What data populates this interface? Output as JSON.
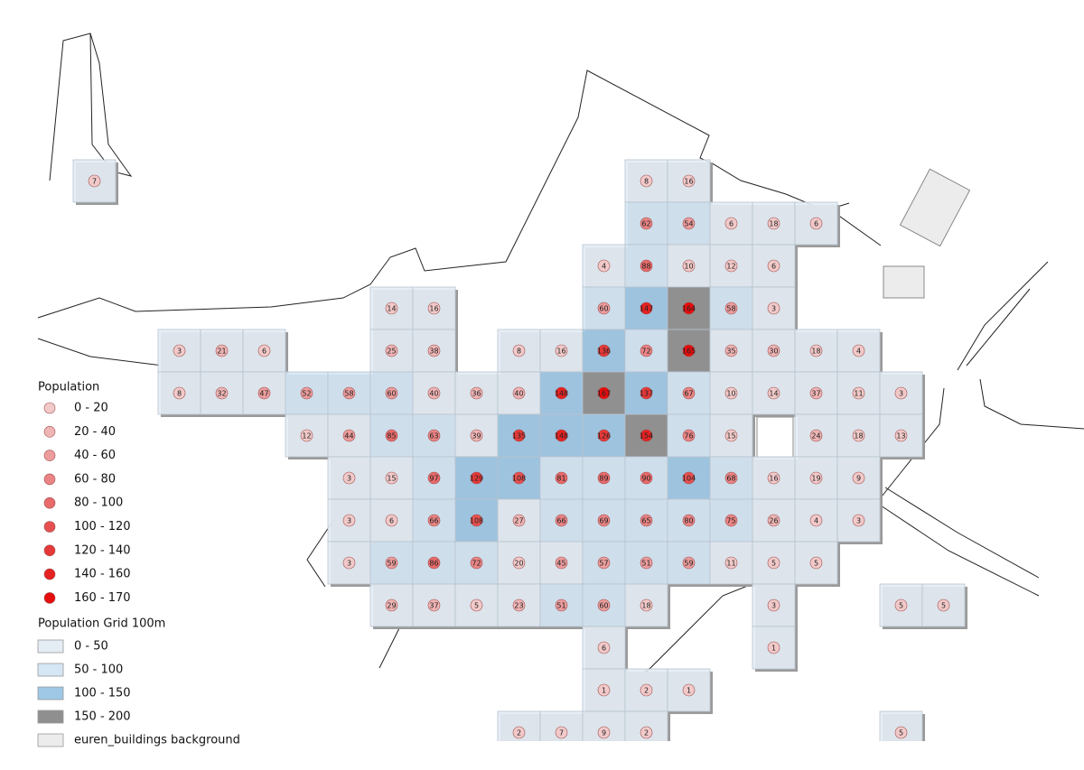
{
  "legend": {
    "population": {
      "title": "Population",
      "items": [
        {
          "label": "0 - 20",
          "color": "#f2c9c9"
        },
        {
          "label": "20 - 40",
          "color": "#efb4b4"
        },
        {
          "label": "40 - 60",
          "color": "#ec9c9c"
        },
        {
          "label": "60 - 80",
          "color": "#ea8484"
        },
        {
          "label": "80 - 100",
          "color": "#e86a6a"
        },
        {
          "label": "100 - 120",
          "color": "#e65050"
        },
        {
          "label": "120 - 140",
          "color": "#e53838"
        },
        {
          "label": "140 - 160",
          "color": "#e52222"
        },
        {
          "label": "160 - 170",
          "color": "#e60d0d"
        }
      ]
    },
    "grid": {
      "title": "Population Grid 100m",
      "items": [
        {
          "label": "0 - 50",
          "color": "#e4ecf4"
        },
        {
          "label": "50 - 100",
          "color": "#d5e6f4"
        },
        {
          "label": "100 - 150",
          "color": "#9ec8e6"
        },
        {
          "label": "150 - 200",
          "color": "#8f8f8f"
        },
        {
          "label": "euren_buildings background",
          "color": "#ececec"
        }
      ]
    }
  },
  "grid_cells": [
    [
      7,
      null,
      null,
      null,
      null,
      null,
      null,
      null,
      null,
      null,
      null,
      null,
      null,
      8,
      16,
      null,
      null,
      null,
      null,
      null,
      null
    ],
    [
      null,
      null,
      null,
      null,
      null,
      null,
      null,
      null,
      null,
      null,
      null,
      null,
      null,
      62,
      54,
      6,
      18,
      6,
      null,
      null,
      null
    ],
    [
      null,
      null,
      null,
      null,
      null,
      null,
      null,
      null,
      null,
      null,
      null,
      null,
      4,
      88,
      10,
      12,
      6,
      null,
      null,
      null,
      null
    ],
    [
      null,
      null,
      null,
      null,
      null,
      null,
      null,
      14,
      16,
      null,
      null,
      null,
      60,
      147,
      164,
      58,
      3,
      null,
      null,
      null,
      null
    ],
    [
      null,
      null,
      3,
      21,
      6,
      null,
      null,
      25,
      38,
      null,
      8,
      16,
      136,
      72,
      165,
      35,
      30,
      18,
      4,
      null,
      null
    ],
    [
      null,
      null,
      8,
      32,
      47,
      52,
      58,
      60,
      40,
      36,
      40,
      148,
      167,
      137,
      67,
      10,
      14,
      37,
      11,
      3,
      null
    ],
    [
      null,
      null,
      null,
      null,
      null,
      12,
      44,
      85,
      63,
      39,
      135,
      148,
      126,
      154,
      76,
      15,
      null,
      24,
      18,
      13,
      null
    ],
    [
      null,
      null,
      null,
      null,
      null,
      null,
      3,
      15,
      97,
      129,
      108,
      81,
      89,
      90,
      104,
      68,
      16,
      19,
      9,
      null,
      null
    ],
    [
      null,
      null,
      null,
      null,
      null,
      null,
      3,
      6,
      66,
      108,
      27,
      66,
      69,
      65,
      80,
      75,
      26,
      4,
      3,
      null,
      null
    ],
    [
      null,
      null,
      null,
      null,
      null,
      null,
      3,
      59,
      86,
      72,
      20,
      45,
      57,
      51,
      59,
      11,
      5,
      5,
      null,
      null,
      null
    ],
    [
      null,
      null,
      null,
      null,
      null,
      null,
      null,
      29,
      37,
      5,
      23,
      51,
      60,
      18,
      null,
      null,
      3,
      null,
      null,
      5,
      5
    ],
    [
      null,
      null,
      null,
      null,
      null,
      null,
      null,
      null,
      null,
      null,
      null,
      null,
      6,
      null,
      null,
      null,
      1,
      null,
      null,
      null,
      null
    ],
    [
      null,
      null,
      null,
      null,
      null,
      null,
      null,
      null,
      null,
      null,
      null,
      null,
      1,
      2,
      1,
      null,
      null,
      null,
      null,
      null,
      null
    ],
    [
      null,
      null,
      null,
      null,
      null,
      null,
      null,
      null,
      null,
      null,
      2,
      7,
      9,
      2,
      null,
      null,
      null,
      null,
      null,
      5,
      null
    ]
  ]
}
